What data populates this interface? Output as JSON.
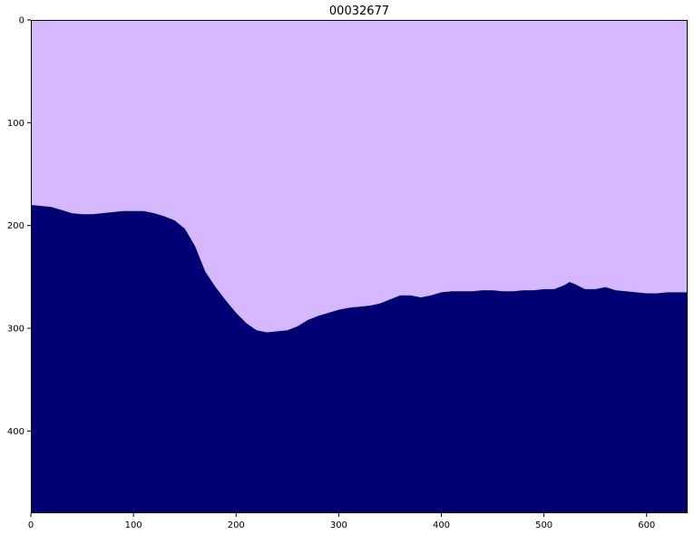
{
  "chart_data": {
    "type": "heatmap",
    "title": "00032677",
    "xlabel": "",
    "ylabel": "",
    "xlim": [
      0,
      640
    ],
    "ylim": [
      480,
      0
    ],
    "x_ticks": [
      0,
      100,
      200,
      300,
      400,
      500,
      600
    ],
    "y_ticks": [
      0,
      100,
      200,
      300,
      400
    ],
    "grid": false,
    "colors": {
      "upper_region": "#d6b8ff",
      "lower_region": "#000075"
    },
    "boundary": {
      "x": [
        0,
        10,
        20,
        30,
        40,
        50,
        60,
        70,
        80,
        90,
        100,
        110,
        120,
        130,
        140,
        150,
        160,
        170,
        180,
        190,
        200,
        210,
        220,
        230,
        240,
        250,
        260,
        270,
        280,
        290,
        300,
        310,
        320,
        330,
        340,
        350,
        360,
        370,
        380,
        390,
        400,
        410,
        420,
        430,
        440,
        450,
        460,
        470,
        480,
        490,
        500,
        510,
        520,
        525,
        530,
        540,
        550,
        560,
        570,
        580,
        590,
        600,
        610,
        620,
        630,
        640
      ],
      "y": [
        180,
        181,
        182,
        185,
        188,
        189,
        189,
        188,
        187,
        186,
        186,
        186,
        188,
        191,
        195,
        203,
        220,
        245,
        260,
        273,
        285,
        295,
        302,
        304,
        303,
        302,
        298,
        292,
        288,
        285,
        282,
        280,
        279,
        278,
        276,
        272,
        268,
        268,
        270,
        268,
        265,
        264,
        264,
        264,
        263,
        263,
        264,
        264,
        263,
        263,
        262,
        262,
        258,
        255,
        257,
        262,
        262,
        260,
        263,
        264,
        265,
        266,
        266,
        265,
        265,
        265
      ]
    }
  }
}
